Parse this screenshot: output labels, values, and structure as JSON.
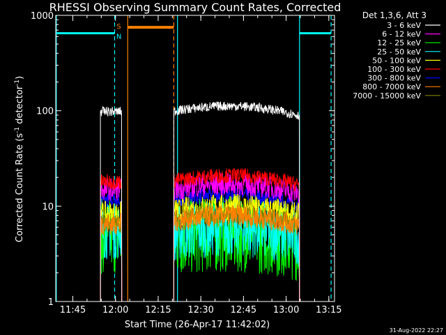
{
  "chart_data": {
    "type": "line",
    "title": "RHESSI Observing Summary Count Rates, Corrected",
    "xlabel": "Start Time (26-Apr-17 11:42:02)",
    "ylabel": "Corrected Count Rate (s",
    "ylabel_sup1": "-1",
    "ylabel_mid": " detector",
    "ylabel_sup2": "-1",
    "ylabel_end": ")",
    "footer": "31-Aug-2022 22:27",
    "y_scale": "log",
    "ylim": [
      1,
      1000
    ],
    "xlim_minutes": [
      -3,
      95
    ],
    "x_ticks": [
      {
        "t": 3,
        "label": "11:45"
      },
      {
        "t": 18,
        "label": "12:00"
      },
      {
        "t": 33,
        "label": "12:15"
      },
      {
        "t": 48,
        "label": "12:30"
      },
      {
        "t": 63,
        "label": "12:45"
      },
      {
        "t": 78,
        "label": "13:00"
      },
      {
        "t": 93,
        "label": "13:15"
      }
    ],
    "y_ticks": [
      {
        "v": 1,
        "label": "1"
      },
      {
        "v": 10,
        "label": "10"
      },
      {
        "v": 100,
        "label": "100"
      },
      {
        "v": 1000,
        "label": "1000"
      }
    ],
    "legend": {
      "header": "Det 1,3,6, Att 3",
      "placement": "right"
    },
    "series": [
      {
        "name": "3 - 6 keV",
        "color": "#ffffff",
        "level_1": 98,
        "level_2": 99,
        "noise": 0.05
      },
      {
        "name": "6 - 12 keV",
        "color": "#ff00ff",
        "level_1": 15,
        "level_2": 15,
        "noise": 0.12
      },
      {
        "name": "12 - 25 keV",
        "color": "#00ff00",
        "level_1": 4.8,
        "level_2": 4.5,
        "noise": 0.4
      },
      {
        "name": "25 - 50 keV",
        "color": "#00ffff",
        "level_1": 5.5,
        "level_2": 5.2,
        "noise": 0.3
      },
      {
        "name": "50 - 100 keV",
        "color": "#ffff00",
        "level_1": 8,
        "level_2": 8.5,
        "noise": 0.15
      },
      {
        "name": "100 - 300 keV",
        "color": "#ff0000",
        "level_1": 18,
        "level_2": 18.5,
        "noise": 0.08
      },
      {
        "name": "300 - 800 keV",
        "color": "#0000ff",
        "level_1": 11.5,
        "level_2": 11.5,
        "noise": 0.08
      },
      {
        "name": "800 - 7000 keV",
        "color": "#ff8000",
        "level_1": 6.5,
        "level_2": 7,
        "noise": 0.12
      },
      {
        "name": "7000 - 15000 keV",
        "color": "#808000",
        "level_1": 6.6,
        "level_2": 7.2,
        "noise": 0.1
      }
    ],
    "data_intervals_minutes": [
      [
        12.7,
        20.2
      ],
      [
        38.5,
        82.7
      ]
    ],
    "saa_bar": {
      "label": "S",
      "t_start": 22.3,
      "t_end": 38.5,
      "level": 750
    },
    "night_bars": [
      {
        "label": "N",
        "t_start": -3,
        "t_end": 17.7,
        "level": 650
      },
      {
        "t_start": 82.7,
        "t_end": 93.8,
        "level": 650
      }
    ],
    "vlines": [
      {
        "t": -2.8,
        "color": "#00ffff",
        "style": "solid"
      },
      {
        "t": 17.7,
        "color": "#00ffff",
        "style": "dashed"
      },
      {
        "t": 22.3,
        "color": "#ff8000",
        "style": "solid"
      },
      {
        "t": 38.5,
        "color": "#ff8000",
        "style": "dashed"
      },
      {
        "t": 39.8,
        "color": "#00ffff",
        "style": "solid"
      },
      {
        "t": 82.7,
        "color": "#00ffff",
        "style": "solid"
      },
      {
        "t": 93.8,
        "color": "#00ffff",
        "style": "dashed"
      }
    ]
  }
}
